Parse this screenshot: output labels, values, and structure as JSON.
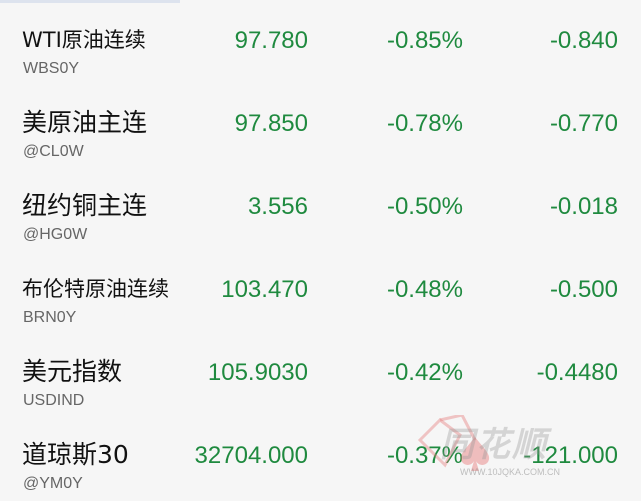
{
  "rows": [
    {
      "name": "WTI原油连续",
      "code": "WBS0Y",
      "price": "97.780",
      "pct": "-0.85%",
      "change": "-0.840"
    },
    {
      "name": "美原油主连",
      "code": "@CL0W",
      "price": "97.850",
      "pct": "-0.78%",
      "change": "-0.770"
    },
    {
      "name": "纽约铜主连",
      "code": "@HG0W",
      "price": "3.556",
      "pct": "-0.50%",
      "change": "-0.018"
    },
    {
      "name": "布伦特原油连续",
      "code": "BRN0Y",
      "price": "103.470",
      "pct": "-0.48%",
      "change": "-0.500"
    },
    {
      "name": "美元指数",
      "code": "USDIND",
      "price": "105.9030",
      "pct": "-0.42%",
      "change": "-0.4480"
    },
    {
      "name": "道琼斯30",
      "code": "@YM0Y",
      "price": "32704.000",
      "pct": "-0.37%",
      "change": "-121.000"
    }
  ],
  "watermark": {
    "brand": "同花顺",
    "url": "WWW.10JQKA.COM.CN"
  },
  "colors": {
    "down": "#1f8a3f",
    "background": "#f6f6f6"
  }
}
